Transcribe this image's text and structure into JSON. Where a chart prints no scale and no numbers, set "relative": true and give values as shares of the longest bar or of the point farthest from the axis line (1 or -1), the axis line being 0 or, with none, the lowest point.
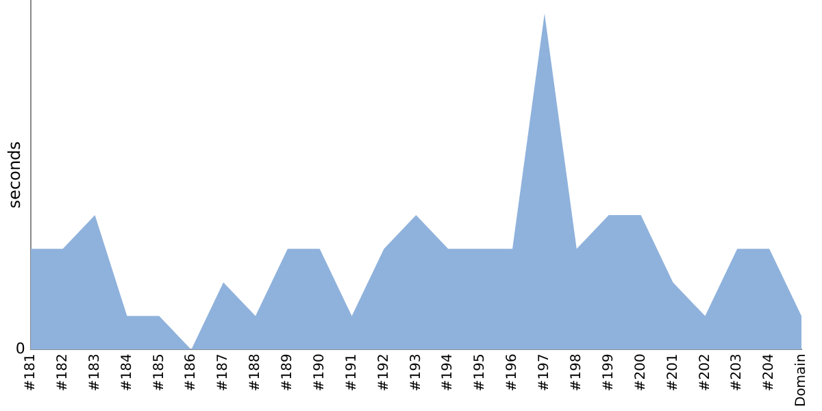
{
  "chart_data": {
    "type": "area",
    "ylabel": "seconds",
    "relative": true,
    "grid": false,
    "legend": false,
    "categories": [
      "#181",
      "#182",
      "#183",
      "#184",
      "#185",
      "#186",
      "#187",
      "#188",
      "#189",
      "#190",
      "#191",
      "#192",
      "#193",
      "#194",
      "#195",
      "#196",
      "#197",
      "#198",
      "#199",
      "#200",
      "#201",
      "#202",
      "#203",
      "#204",
      "Domain"
    ],
    "series": [
      {
        "color": "#8fb2dc",
        "values": [
          0.3,
          0.3,
          0.4,
          0.1,
          0.1,
          0,
          0.2,
          0.1,
          0.3,
          0.3,
          0.1,
          0.3,
          0.4,
          0.3,
          0.3,
          0.3,
          1,
          0.3,
          0.4,
          0.4,
          0.2,
          0.1,
          0.3,
          0.3,
          0.1
        ]
      }
    ],
    "annotations": [
      "0"
    ]
  }
}
